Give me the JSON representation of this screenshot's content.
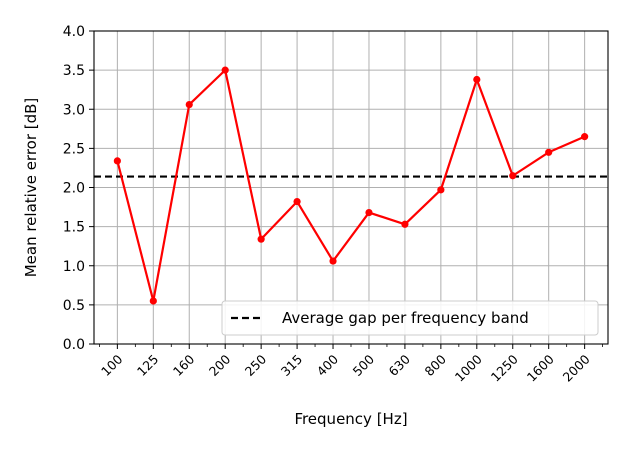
{
  "chart_data": {
    "type": "line",
    "title": "",
    "xlabel": "Frequency [Hz]",
    "ylabel": "Mean relative error [dB]",
    "categories": [
      "100",
      "125",
      "160",
      "200",
      "250",
      "315",
      "400",
      "500",
      "630",
      "800",
      "1000",
      "1250",
      "1600",
      "2000"
    ],
    "y_ticks": [
      "0.0",
      "0.5",
      "1.0",
      "1.5",
      "2.0",
      "2.5",
      "3.0",
      "3.5",
      "4.0"
    ],
    "ylim": [
      0,
      4
    ],
    "grid": true,
    "legend_position": "lower-right",
    "series": [
      {
        "name": "",
        "color": "#ff0000",
        "marker": "circle",
        "values": [
          2.34,
          0.55,
          3.06,
          3.5,
          1.34,
          1.82,
          1.06,
          1.68,
          1.53,
          1.97,
          3.38,
          2.15,
          2.45,
          2.65
        ]
      }
    ],
    "reference_line": {
      "name": "Average gap per frequency band",
      "value": 2.14,
      "color": "#000000",
      "style": "dashed"
    }
  }
}
